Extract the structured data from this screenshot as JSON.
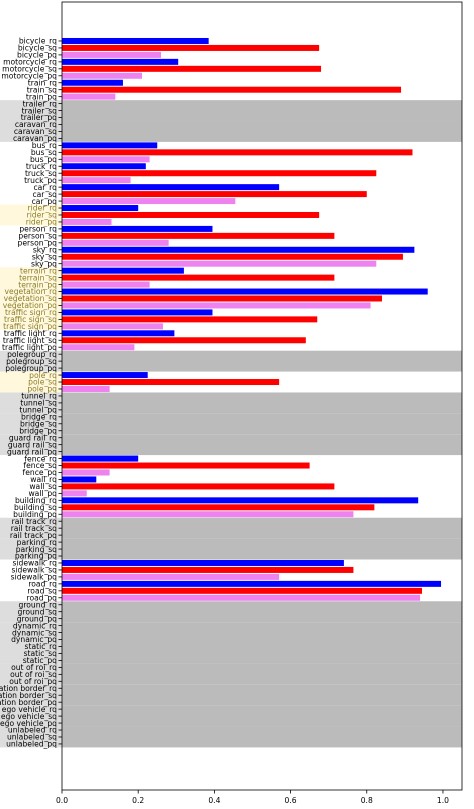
{
  "chart_data": {
    "type": "bar",
    "orientation": "horizontal",
    "xlim": [
      0,
      1.05
    ],
    "x_ticks": [
      "0.0",
      "0.2",
      "0.4",
      "0.6",
      "0.8",
      "1.0"
    ],
    "x_tick_values": [
      0,
      0.2,
      0.4,
      0.6,
      0.8,
      1.0
    ],
    "colors": {
      "rq": "#0000ff",
      "sq": "#ff0000",
      "pq": "#ee82ee",
      "missing_band": "#bbbbbb",
      "missing_label_bg": "#dddddd",
      "highlight_label_bg": "#fff8dc",
      "highlight_label_text": "#8b7d2b",
      "label_text": "#000000"
    },
    "classes": [
      {
        "name": "bicycle",
        "labels": [
          "bicycle_rq",
          "bicycle_sq",
          "bicycle_pq"
        ],
        "values": [
          0.385,
          0.675,
          0.26
        ],
        "status": "normal"
      },
      {
        "name": "motorcycle",
        "labels": [
          "motorcycle_rq",
          "motorcycle_sq",
          "motorcycle_pq"
        ],
        "values": [
          0.305,
          0.68,
          0.21
        ],
        "status": "normal"
      },
      {
        "name": "train",
        "labels": [
          "train_rq",
          "train_sq",
          "train_pq"
        ],
        "values": [
          0.16,
          0.89,
          0.14
        ],
        "status": "normal"
      },
      {
        "name": "trailer",
        "labels": [
          "trailer_rq",
          "trailer_sq",
          "trailer_pq"
        ],
        "values": [
          null,
          null,
          null
        ],
        "status": "missing"
      },
      {
        "name": "caravan",
        "labels": [
          "caravan_rq",
          "caravan_sq",
          "caravan_pq"
        ],
        "values": [
          null,
          null,
          null
        ],
        "status": "missing"
      },
      {
        "name": "bus",
        "labels": [
          "bus_rq",
          "bus_sq",
          "bus_pq"
        ],
        "values": [
          0.25,
          0.92,
          0.23
        ],
        "status": "normal"
      },
      {
        "name": "truck",
        "labels": [
          "truck_rq",
          "truck_sq",
          "truck_pq"
        ],
        "values": [
          0.22,
          0.825,
          0.18
        ],
        "status": "normal"
      },
      {
        "name": "car",
        "labels": [
          "car_rq",
          "car_sq",
          "car_pq"
        ],
        "values": [
          0.57,
          0.8,
          0.455
        ],
        "status": "normal"
      },
      {
        "name": "rider",
        "labels": [
          "rider_rq",
          "rider_sq",
          "rider_pq"
        ],
        "values": [
          0.2,
          0.675,
          0.13
        ],
        "status": "highlight"
      },
      {
        "name": "person",
        "labels": [
          "person_rq",
          "person_sq",
          "person_pq"
        ],
        "values": [
          0.395,
          0.715,
          0.28
        ],
        "status": "normal"
      },
      {
        "name": "sky",
        "labels": [
          "sky_rq",
          "sky_sq",
          "sky_pq"
        ],
        "values": [
          0.925,
          0.895,
          0.825
        ],
        "status": "normal"
      },
      {
        "name": "terrain",
        "labels": [
          "terrain_rq",
          "terrain_sq",
          "terrain_pq"
        ],
        "values": [
          0.32,
          0.715,
          0.23
        ],
        "status": "highlight"
      },
      {
        "name": "vegetation",
        "labels": [
          "vegetation_rq",
          "vegetation_sq",
          "vegetation_pq"
        ],
        "values": [
          0.96,
          0.84,
          0.81
        ],
        "status": "highlight"
      },
      {
        "name": "traffic sign",
        "labels": [
          "traffic sign_rq",
          "traffic sign_sq",
          "traffic sign_pq"
        ],
        "values": [
          0.395,
          0.67,
          0.265
        ],
        "status": "highlight"
      },
      {
        "name": "traffic light",
        "labels": [
          "traffic light_rq",
          "traffic light_sq",
          "traffic light_pq"
        ],
        "values": [
          0.295,
          0.64,
          0.19
        ],
        "status": "normal"
      },
      {
        "name": "polegroup",
        "labels": [
          "polegroup_rq",
          "polegroup_sq",
          "polegroup_pq"
        ],
        "values": [
          null,
          null,
          null
        ],
        "status": "missing"
      },
      {
        "name": "pole",
        "labels": [
          "pole_rq",
          "pole_sq",
          "pole_pq"
        ],
        "values": [
          0.225,
          0.57,
          0.125
        ],
        "status": "highlight"
      },
      {
        "name": "tunnel",
        "labels": [
          "tunnel_rq",
          "tunnel_sq",
          "tunnel_pq"
        ],
        "values": [
          null,
          null,
          null
        ],
        "status": "missing"
      },
      {
        "name": "bridge",
        "labels": [
          "bridge_rq",
          "bridge_sq",
          "bridge_pq"
        ],
        "values": [
          null,
          null,
          null
        ],
        "status": "missing"
      },
      {
        "name": "guard rail",
        "labels": [
          "guard rail_rq",
          "guard rail_sq",
          "guard rail_pq"
        ],
        "values": [
          null,
          null,
          null
        ],
        "status": "missing"
      },
      {
        "name": "fence",
        "labels": [
          "fence_rq",
          "fence_sq",
          "fence_pq"
        ],
        "values": [
          0.2,
          0.65,
          0.125
        ],
        "status": "normal"
      },
      {
        "name": "wall",
        "labels": [
          "wall_rq",
          "wall_sq",
          "wall_pq"
        ],
        "values": [
          0.09,
          0.715,
          0.065
        ],
        "status": "normal"
      },
      {
        "name": "building",
        "labels": [
          "building_rq",
          "building_sq",
          "building_pq"
        ],
        "values": [
          0.935,
          0.82,
          0.765
        ],
        "status": "normal"
      },
      {
        "name": "rail track",
        "labels": [
          "rail track_rq",
          "rail track_sq",
          "rail track_pq"
        ],
        "values": [
          null,
          null,
          null
        ],
        "status": "missing"
      },
      {
        "name": "parking",
        "labels": [
          "parking_rq",
          "parking_sq",
          "parking_pq"
        ],
        "values": [
          null,
          null,
          null
        ],
        "status": "missing"
      },
      {
        "name": "sidewalk",
        "labels": [
          "sidewalk_rq",
          "sidewalk_sq",
          "sidewalk_pq"
        ],
        "values": [
          0.74,
          0.765,
          0.57
        ],
        "status": "normal"
      },
      {
        "name": "road",
        "labels": [
          "road_rq",
          "road_sq",
          "road_pq"
        ],
        "values": [
          0.995,
          0.945,
          0.94
        ],
        "status": "normal"
      },
      {
        "name": "ground",
        "labels": [
          "ground_rq",
          "ground_sq",
          "ground_pq"
        ],
        "values": [
          null,
          null,
          null
        ],
        "status": "missing"
      },
      {
        "name": "dynamic",
        "labels": [
          "dynamic_rq",
          "dynamic_sq",
          "dynamic_pq"
        ],
        "values": [
          null,
          null,
          null
        ],
        "status": "missing"
      },
      {
        "name": "static",
        "labels": [
          "static_rq",
          "static_sq",
          "static_pq"
        ],
        "values": [
          null,
          null,
          null
        ],
        "status": "missing"
      },
      {
        "name": "out of roi",
        "labels": [
          "out of roi_rq",
          "out of roi_sq",
          "out of roi_pq"
        ],
        "values": [
          null,
          null,
          null
        ],
        "status": "missing"
      },
      {
        "name": "rectification border",
        "labels": [
          "ation border_rq",
          "ation border_sq",
          "ation border_pq"
        ],
        "values": [
          null,
          null,
          null
        ],
        "status": "missing"
      },
      {
        "name": "ego vehicle",
        "labels": [
          "ego vehicle_rq",
          "ego vehicle_sq",
          "ego vehicle_pq"
        ],
        "values": [
          null,
          null,
          null
        ],
        "status": "missing"
      },
      {
        "name": "unlabeled",
        "labels": [
          "unlabeled_rq",
          "unlabeled_sq",
          "unlabeled_pq"
        ],
        "values": [
          null,
          null,
          null
        ],
        "status": "missing"
      }
    ]
  }
}
